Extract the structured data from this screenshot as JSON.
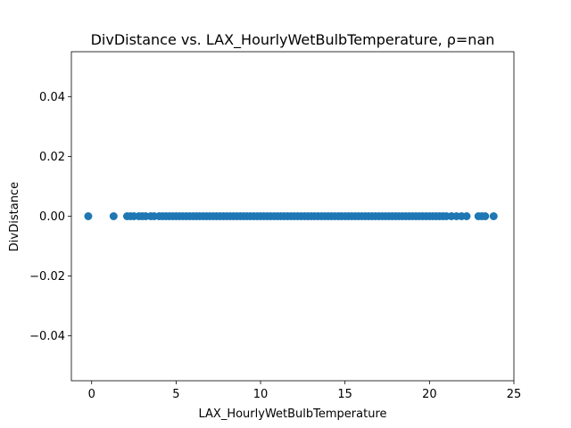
{
  "chart_data": {
    "type": "scatter",
    "title": "DivDistance vs. LAX_HourlyWetBulbTemperature, ρ=nan",
    "xlabel": "LAX_HourlyWetBulbTemperature",
    "ylabel": "DivDistance",
    "xlim": [
      -1.2,
      25.0
    ],
    "ylim": [
      -0.055,
      0.055
    ],
    "xticks": [
      0,
      5,
      10,
      15,
      20,
      25
    ],
    "yticks": [
      -0.04,
      -0.02,
      0.0,
      0.02,
      0.04
    ],
    "xtick_labels": [
      "0",
      "5",
      "10",
      "15",
      "20",
      "25"
    ],
    "ytick_labels": [
      "−0.04",
      "−0.02",
      "0.00",
      "0.02",
      "0.04"
    ],
    "grid": false,
    "marker_color": "#1f77b4",
    "x": [
      -0.2,
      1.3,
      2.1,
      2.3,
      2.5,
      2.8,
      3.0,
      3.2,
      3.5,
      3.7,
      4.0,
      4.2,
      4.4,
      4.6,
      4.8,
      5.0,
      5.2,
      5.4,
      5.6,
      5.8,
      6.0,
      6.2,
      6.4,
      6.6,
      6.8,
      7.0,
      7.2,
      7.4,
      7.6,
      7.8,
      8.0,
      8.2,
      8.4,
      8.6,
      8.8,
      9.0,
      9.2,
      9.4,
      9.6,
      9.8,
      10.0,
      10.2,
      10.4,
      10.6,
      10.8,
      11.0,
      11.2,
      11.4,
      11.6,
      11.8,
      12.0,
      12.2,
      12.4,
      12.6,
      12.8,
      13.0,
      13.2,
      13.4,
      13.6,
      13.8,
      14.0,
      14.2,
      14.4,
      14.6,
      14.8,
      15.0,
      15.2,
      15.4,
      15.6,
      15.8,
      16.0,
      16.2,
      16.4,
      16.6,
      16.8,
      17.0,
      17.2,
      17.4,
      17.6,
      17.8,
      18.0,
      18.2,
      18.4,
      18.6,
      18.8,
      19.0,
      19.2,
      19.4,
      19.6,
      19.8,
      20.0,
      20.2,
      20.4,
      20.6,
      20.8,
      21.0,
      21.3,
      21.6,
      21.9,
      22.2,
      22.9,
      23.1,
      23.3,
      23.8
    ],
    "y": [
      0,
      0,
      0,
      0,
      0,
      0,
      0,
      0,
      0,
      0,
      0,
      0,
      0,
      0,
      0,
      0,
      0,
      0,
      0,
      0,
      0,
      0,
      0,
      0,
      0,
      0,
      0,
      0,
      0,
      0,
      0,
      0,
      0,
      0,
      0,
      0,
      0,
      0,
      0,
      0,
      0,
      0,
      0,
      0,
      0,
      0,
      0,
      0,
      0,
      0,
      0,
      0,
      0,
      0,
      0,
      0,
      0,
      0,
      0,
      0,
      0,
      0,
      0,
      0,
      0,
      0,
      0,
      0,
      0,
      0,
      0,
      0,
      0,
      0,
      0,
      0,
      0,
      0,
      0,
      0,
      0,
      0,
      0,
      0,
      0,
      0,
      0,
      0,
      0,
      0,
      0,
      0,
      0,
      0,
      0,
      0,
      0,
      0,
      0,
      0,
      0,
      0,
      0,
      0
    ]
  }
}
